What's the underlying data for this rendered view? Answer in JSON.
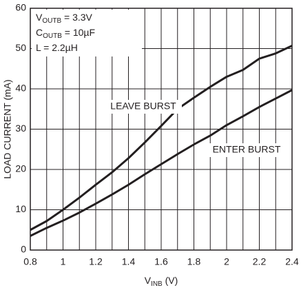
{
  "chart_data": {
    "type": "line",
    "annotations": [
      {
        "main": "V",
        "sub": "OUTB",
        "tail": " = 3.3V"
      },
      {
        "main": "C",
        "sub": "OUTB",
        "tail": " = 10µF"
      },
      {
        "main": "L = 2.2µH",
        "sub": "",
        "tail": ""
      }
    ],
    "x_label": {
      "main": "V",
      "sub": "INB",
      "tail": " (V)"
    },
    "y_label": "LOAD CURRENT (mA)",
    "x": [
      0.8,
      0.9,
      1.0,
      1.1,
      1.2,
      1.3,
      1.4,
      1.5,
      1.6,
      1.7,
      1.8,
      1.9,
      2.0,
      2.1,
      2.2,
      2.3,
      2.4
    ],
    "series": [
      {
        "name": "LEAVE BURST",
        "color": "#231f20",
        "values": [
          5,
          7.2,
          10,
          13,
          16.2,
          19.3,
          22.8,
          26.7,
          30.8,
          35,
          37.8,
          40.5,
          43,
          44.7,
          47.5,
          48.8,
          50.7
        ]
      },
      {
        "name": "ENTER BURST",
        "color": "#231f20",
        "values": [
          3.5,
          5.5,
          7.3,
          9.3,
          11.5,
          13.8,
          16.2,
          18.8,
          21.3,
          23.8,
          26.2,
          28.4,
          31,
          33.2,
          35.5,
          37.6,
          39.7
        ]
      }
    ],
    "xlim": [
      0.8,
      2.4
    ],
    "ylim": [
      0,
      60
    ],
    "xticks": [
      0.8,
      1,
      1.2,
      1.4,
      1.6,
      1.8,
      2,
      2.2,
      2.4
    ],
    "xminor_ticks": [
      0.9,
      1.1,
      1.3,
      1.5,
      1.7,
      1.9,
      2.1,
      2.3
    ],
    "yticks": [
      0,
      10,
      20,
      30,
      40,
      50,
      60
    ],
    "grid": true
  }
}
